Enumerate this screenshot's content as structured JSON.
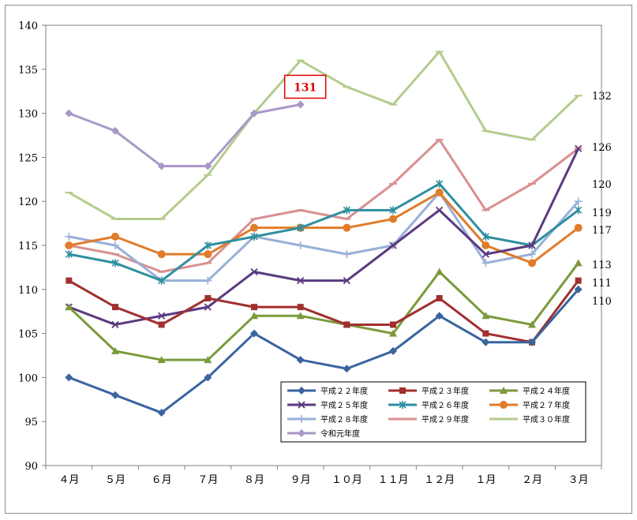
{
  "chart_data": {
    "type": "line",
    "title": "",
    "xlabel": "",
    "ylabel": "",
    "categories": [
      "４月",
      "５月",
      "６月",
      "７月",
      "８月",
      "９月",
      "１０月",
      "１１月",
      "１２月",
      "１月",
      "２月",
      "３月"
    ],
    "ylim": [
      90,
      140
    ],
    "yticks": [
      90,
      95,
      100,
      105,
      110,
      115,
      120,
      125,
      130,
      135,
      140
    ],
    "grid": "none",
    "legend": "bottom-right",
    "series": [
      {
        "name": "平成２２年度",
        "color": "#3a64a0",
        "marker": "diamond",
        "values": [
          100,
          98,
          96,
          100,
          105,
          102,
          101,
          103,
          107,
          104,
          104,
          110
        ]
      },
      {
        "name": "平成２３年度",
        "color": "#a0302e",
        "marker": "square",
        "values": [
          111,
          108,
          106,
          109,
          108,
          108,
          106,
          106,
          109,
          105,
          104,
          111
        ]
      },
      {
        "name": "平成２４年度",
        "color": "#7a9a3a",
        "marker": "triangle",
        "values": [
          108,
          103,
          102,
          102,
          107,
          107,
          106,
          105,
          112,
          107,
          106,
          113
        ]
      },
      {
        "name": "平成２５年度",
        "color": "#5a3a80",
        "marker": "x",
        "values": [
          108,
          106,
          107,
          108,
          112,
          111,
          111,
          115,
          119,
          114,
          115,
          126
        ]
      },
      {
        "name": "平成２６年度",
        "color": "#2f8fa0",
        "marker": "star",
        "values": [
          114,
          113,
          111,
          115,
          116,
          117,
          119,
          119,
          122,
          116,
          115,
          119
        ]
      },
      {
        "name": "平成２７年度",
        "color": "#e07c2a",
        "marker": "circle",
        "values": [
          115,
          116,
          114,
          114,
          117,
          117,
          117,
          118,
          121,
          115,
          113,
          117
        ]
      },
      {
        "name": "平成２８年度",
        "color": "#98b0d8",
        "marker": "plus",
        "values": [
          116,
          115,
          111,
          111,
          116,
          115,
          114,
          115,
          121,
          113,
          114,
          120
        ]
      },
      {
        "name": "平成２９年度",
        "color": "#d89090",
        "marker": "dash",
        "values": [
          115,
          114,
          112,
          113,
          118,
          119,
          118,
          122,
          127,
          119,
          122,
          126
        ]
      },
      {
        "name": "平成３０年度",
        "color": "#b4cc8c",
        "marker": "dash",
        "values": [
          121,
          118,
          118,
          123,
          130,
          136,
          133,
          131,
          137,
          128,
          127,
          132
        ]
      },
      {
        "name": "令和元年度",
        "color": "#a898c8",
        "marker": "diamond",
        "values": [
          130,
          128,
          124,
          124,
          130,
          131,
          null,
          null,
          null,
          null,
          null,
          null
        ]
      }
    ],
    "annotations": [
      {
        "text": "131",
        "category": "９月",
        "value": 131,
        "color": "#e00000"
      }
    ],
    "end_labels": [
      {
        "text": "132",
        "value": 132
      },
      {
        "text": "126",
        "value": 126
      },
      {
        "text": "120",
        "value": 120
      },
      {
        "text": "119",
        "value": 119
      },
      {
        "text": "117",
        "value": 117
      },
      {
        "text": "113",
        "value": 113
      },
      {
        "text": "111",
        "value": 111
      },
      {
        "text": "110",
        "value": 110
      }
    ]
  }
}
